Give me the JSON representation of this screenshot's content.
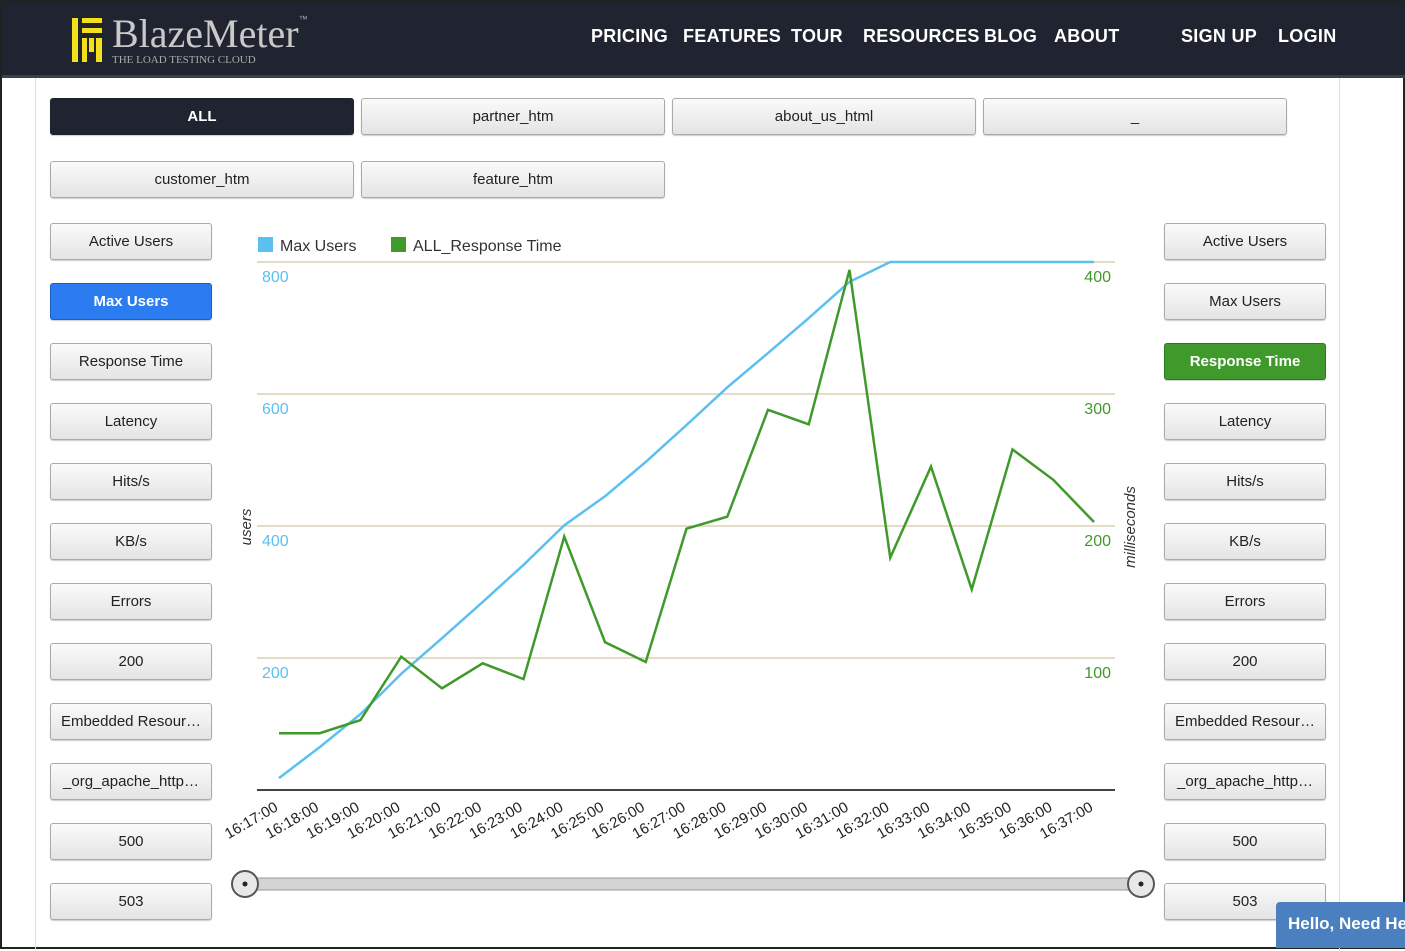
{
  "nav": {
    "brand": "BlazeMeter",
    "tm": "™",
    "tagline": "THE LOAD TESTING CLOUD",
    "items": [
      "PRICING",
      "FEATURES",
      "TOUR",
      "RESOURCES",
      "BLOG",
      "ABOUT"
    ],
    "signup": "SIGN UP",
    "login": "LOGIN"
  },
  "labels": [
    "ALL",
    "partner_htm",
    "about_us_html",
    "_",
    "customer_htm",
    "feature_htm"
  ],
  "left_metrics": [
    "Active Users",
    "Max Users",
    "Response Time",
    "Latency",
    "Hits/s",
    "KB/s",
    "Errors",
    "200",
    "Embedded Resour…",
    "_org_apache_http…",
    "500",
    "503"
  ],
  "right_metrics": [
    "Active Users",
    "Max Users",
    "Response Time",
    "Latency",
    "Hits/s",
    "KB/s",
    "Errors",
    "200",
    "Embedded Resour…",
    "_org_apache_http…",
    "500",
    "503"
  ],
  "chat": "Hello, Need Help?",
  "colors": {
    "users": "#5bc0f0",
    "response": "#3f9a2b",
    "nav": "#1f2430"
  },
  "chart_data": {
    "type": "line",
    "legend": [
      "Max Users",
      "ALL_Response Time"
    ],
    "ylabel_left": "users",
    "ylabel_right": "milliseconds",
    "ylim_left": [
      0,
      800
    ],
    "ylim_right": [
      0,
      400
    ],
    "yticks_left": [
      "200",
      "400",
      "600",
      "800"
    ],
    "yticks_right": [
      "100",
      "200",
      "300",
      "400"
    ],
    "x": [
      "16:17:00",
      "16:18:00",
      "16:19:00",
      "16:20:00",
      "16:21:00",
      "16:22:00",
      "16:23:00",
      "16:24:00",
      "16:25:00",
      "16:26:00",
      "16:27:00",
      "16:28:00",
      "16:29:00",
      "16:30:00",
      "16:31:00",
      "16:32:00",
      "16:33:00",
      "16:34:00",
      "16:35:00",
      "16:36:00",
      "16:37:00"
    ],
    "series": [
      {
        "name": "Max Users",
        "axis": "left",
        "values": [
          18,
          65,
          115,
          176,
          230,
          285,
          341,
          401,
          445,
          497,
          553,
          610,
          662,
          715,
          770,
          800,
          800,
          800,
          800,
          800,
          800
        ]
      },
      {
        "name": "ALL_Response Time",
        "axis": "right",
        "values": [
          43,
          43,
          53,
          101,
          77,
          96,
          84,
          192,
          112,
          97,
          198,
          207,
          288,
          277,
          394,
          176,
          245,
          152,
          258,
          235,
          203
        ]
      }
    ]
  }
}
